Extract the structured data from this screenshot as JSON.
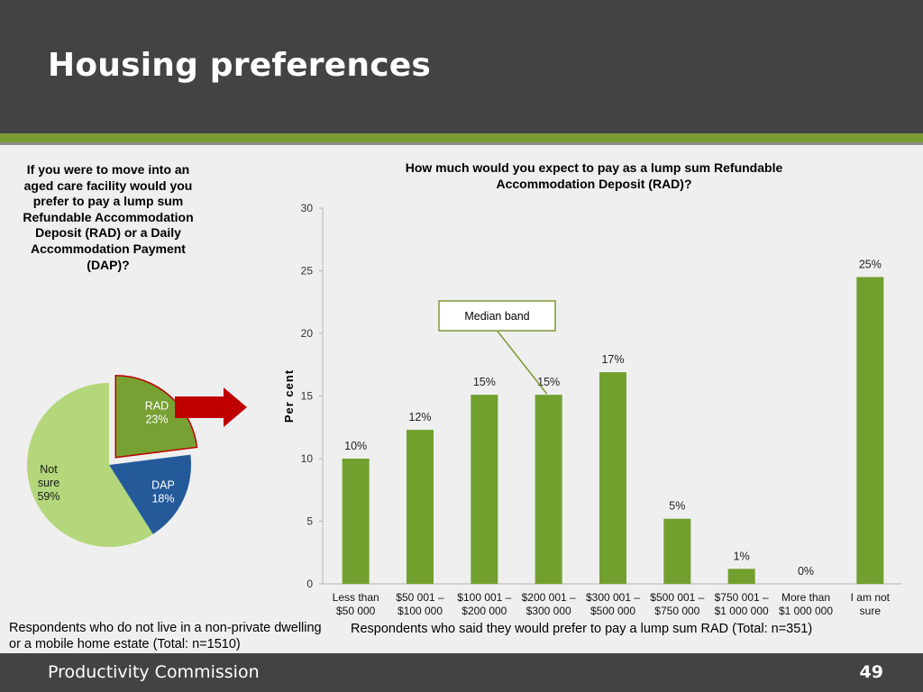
{
  "header": {
    "title": "Housing preferences"
  },
  "pie": {
    "question": "If you were to move into an aged care facility would you prefer to pay a lump sum Refundable Accommodation Deposit (RAD) or a Daily Accommodation Payment (DAP)?",
    "note": "Respondents who do not live in a non-private dwelling or a mobile home estate (Total: n=1510)"
  },
  "bar": {
    "note": "Respondents who said they would prefer to pay a lump sum RAD (Total: n=351)",
    "callout": "Median band"
  },
  "footer": {
    "org": "Productivity Commission",
    "page": "49"
  },
  "colors": {
    "header_bg": "#434343",
    "accent_green": "#7a9a33",
    "bar_green": "#72a02f",
    "pie_rad": "#77a133",
    "pie_dap": "#245a9a",
    "pie_notsure": "#b3d77a",
    "arrow_red": "#c00000"
  },
  "chart_data": [
    {
      "type": "pie",
      "slices": [
        {
          "label": "RAD",
          "value": 23,
          "value_label": "23%",
          "exploded": true
        },
        {
          "label": "DAP",
          "value": 18,
          "value_label": "18%"
        },
        {
          "label": "Not sure",
          "value": 59,
          "value_label": "59%"
        }
      ]
    },
    {
      "type": "bar",
      "title": "How much would you expect to pay as a lump sum Refundable Accommodation Deposit (RAD)?",
      "ylabel": "Per cent",
      "xlabel": "",
      "ylim": [
        0,
        30
      ],
      "yticks": [
        0,
        5,
        10,
        15,
        20,
        25,
        30
      ],
      "grid": false,
      "categories": [
        [
          "Less than",
          "$50 000"
        ],
        [
          "$50 001 –",
          "$100 000"
        ],
        [
          "$100 001 –",
          "$200 000"
        ],
        [
          "$200 001 –",
          "$300 000"
        ],
        [
          "$300 001 –",
          "$500 000"
        ],
        [
          "$500 001 –",
          "$750 000"
        ],
        [
          "$750 001 –",
          "$1 000 000"
        ],
        [
          "More than",
          "$1 000 000"
        ],
        [
          "I am not",
          "sure"
        ]
      ],
      "values": [
        10,
        12.3,
        15.1,
        15.1,
        16.9,
        5.2,
        1.2,
        0,
        24.5
      ],
      "data_labels": [
        "10%",
        "12%",
        "15%",
        "15%",
        "17%",
        "5%",
        "1%",
        "0%",
        "25%"
      ],
      "median_category_index": 3
    }
  ]
}
